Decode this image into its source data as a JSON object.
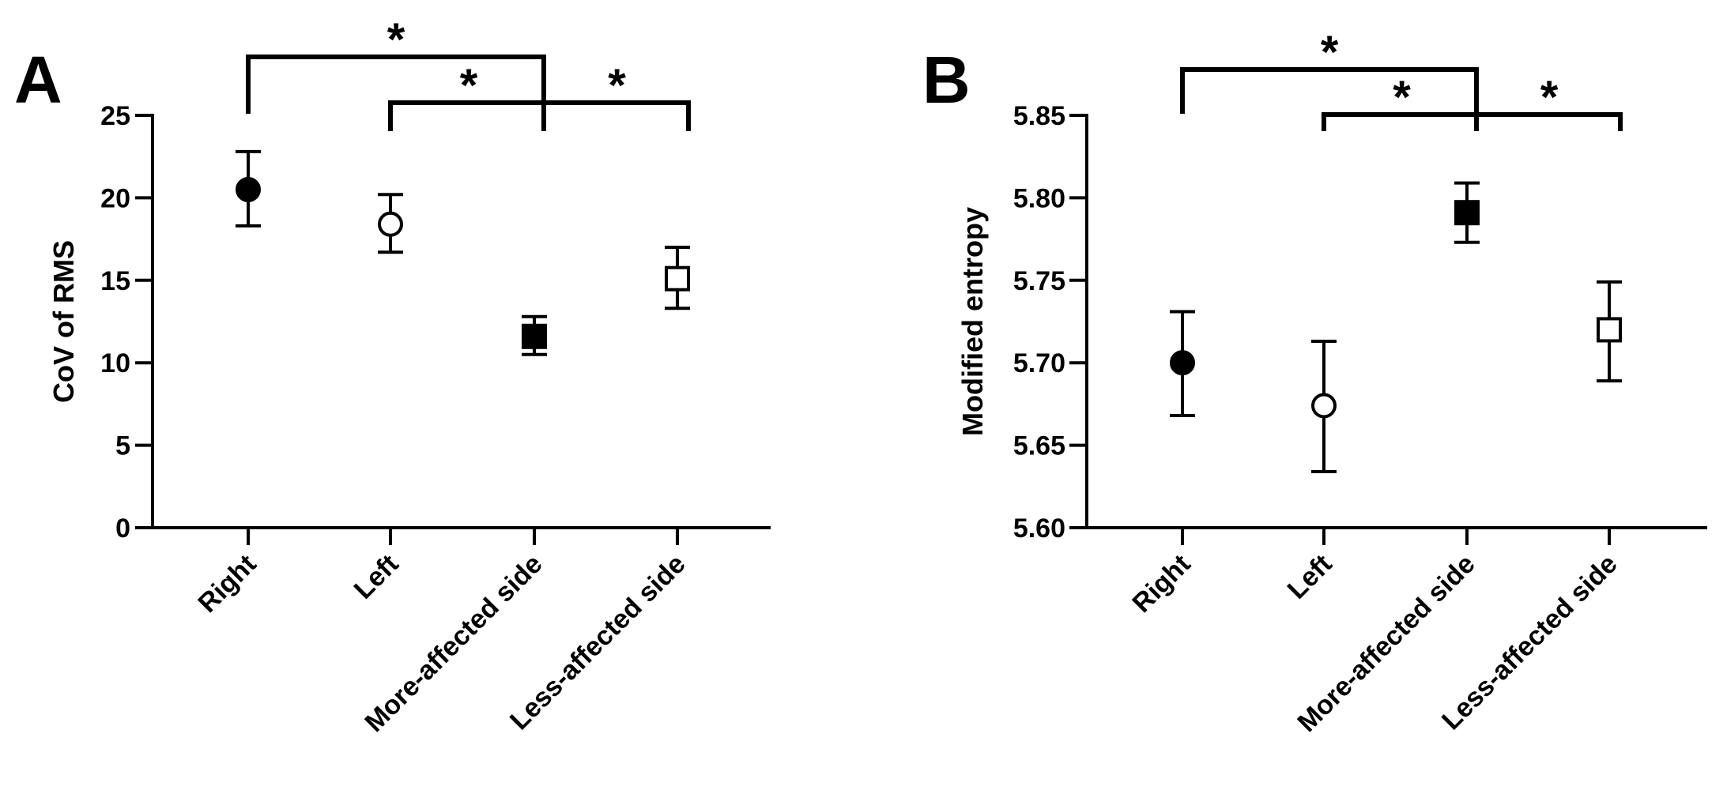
{
  "chart_data": [
    {
      "type": "scatter",
      "panel_label": "A",
      "ylabel": "CoV of RMS",
      "xlabel": "",
      "categories": [
        "Right",
        "Left",
        "More-affected side",
        "Less-affected side"
      ],
      "ylim": [
        0,
        25
      ],
      "yticks": [
        0,
        5,
        10,
        15,
        20,
        25
      ],
      "y_tick_labels": [
        "0",
        "5",
        "10",
        "15",
        "20",
        "25"
      ],
      "values": [
        20.5,
        18.4,
        11.6,
        15.1
      ],
      "error_low": [
        18.3,
        16.7,
        10.5,
        13.3
      ],
      "error_high": [
        22.8,
        20.2,
        12.8,
        17.0
      ],
      "markers": [
        "filled-circle",
        "open-circle",
        "filled-square",
        "open-square"
      ],
      "significance": [
        {
          "from": 0,
          "to": 2,
          "label": "*"
        },
        {
          "from": 1,
          "to": 2,
          "label": "*"
        },
        {
          "from": 2,
          "to": 3,
          "label": "*"
        }
      ]
    },
    {
      "type": "scatter",
      "panel_label": "B",
      "ylabel": "Modified entropy",
      "xlabel": "",
      "categories": [
        "Right",
        "Left",
        "More-affected side",
        "Less-affected side"
      ],
      "ylim": [
        5.6,
        5.85
      ],
      "yticks": [
        5.6,
        5.65,
        5.7,
        5.75,
        5.8,
        5.85
      ],
      "y_tick_labels": [
        "5.60",
        "5.65",
        "5.70",
        "5.75",
        "5.80",
        "5.85"
      ],
      "values": [
        5.7,
        5.674,
        5.791,
        5.72
      ],
      "error_low": [
        5.668,
        5.634,
        5.773,
        5.689
      ],
      "error_high": [
        5.731,
        5.713,
        5.809,
        5.749
      ],
      "markers": [
        "filled-circle",
        "open-circle",
        "filled-square",
        "open-square"
      ],
      "significance": [
        {
          "from": 0,
          "to": 2,
          "label": "*"
        },
        {
          "from": 1,
          "to": 2,
          "label": "*"
        },
        {
          "from": 2,
          "to": 3,
          "label": "*"
        }
      ]
    }
  ]
}
